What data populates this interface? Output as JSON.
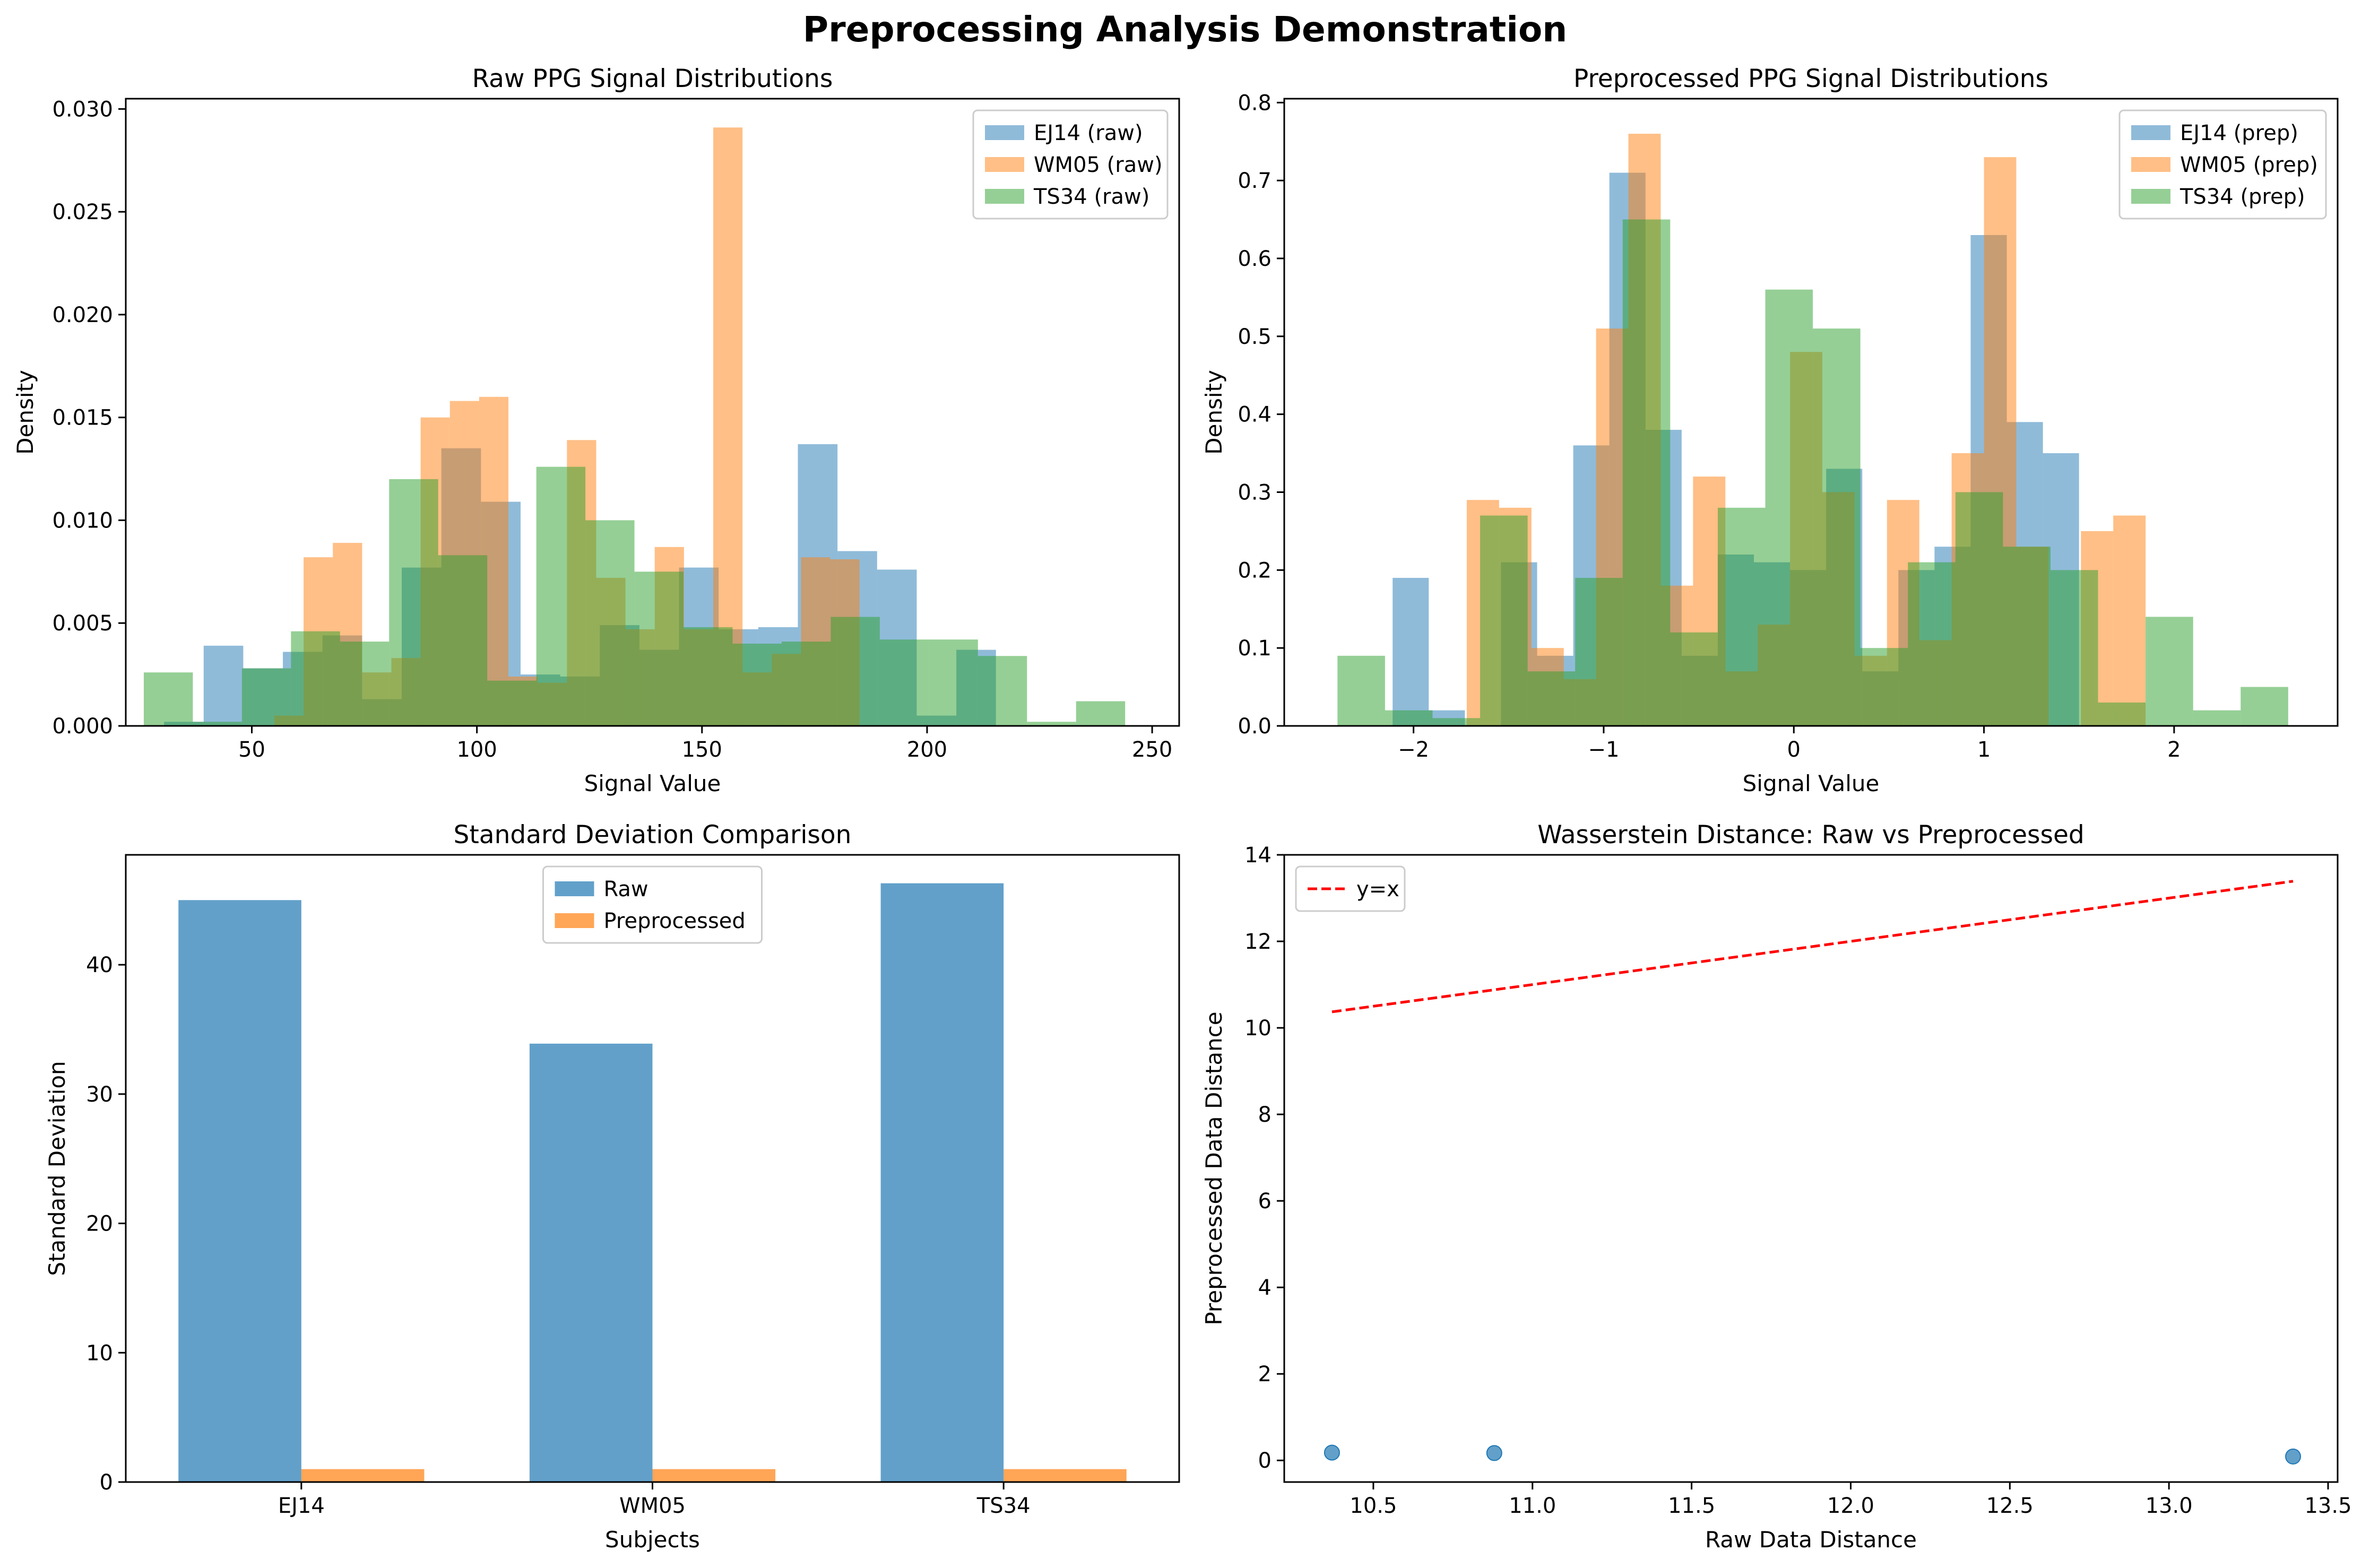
{
  "figure": {
    "title": "Preprocessing Analysis Demonstration"
  },
  "colors": {
    "blue": "#1f77b4",
    "orange": "#ff7f0e",
    "green": "#2ca02c",
    "red": "#ff0000"
  },
  "chart_data": [
    {
      "type": "histogram",
      "title": "Raw PPG Signal Distributions",
      "xlabel": "Signal Value",
      "ylabel": "Density",
      "xlim": [
        22,
        256
      ],
      "ylim": [
        0,
        0.0305
      ],
      "xticks": [
        50,
        100,
        150,
        200,
        250
      ],
      "yticks": [
        0.0,
        0.005,
        0.01,
        0.015,
        0.02,
        0.025,
        0.03
      ],
      "ytick_decimals": 3,
      "legend": "top-right",
      "series": [
        {
          "name": "EJ14 (raw)",
          "color": "blue",
          "edges": [
            30.5,
            39.3,
            48.1,
            56.9,
            65.7,
            74.5,
            83.3,
            92.1,
            100.9,
            109.7,
            118.5,
            127.3,
            136.1,
            144.9,
            153.7,
            162.5,
            171.3,
            180.1,
            188.9,
            197.7,
            206.5,
            215.3
          ],
          "density": [
            0.0002,
            0.0039,
            0.0028,
            0.0036,
            0.0044,
            0.0013,
            0.0077,
            0.0135,
            0.0109,
            0.0025,
            0.0024,
            0.0049,
            0.0037,
            0.0077,
            0.0047,
            0.0048,
            0.0137,
            0.0085,
            0.0076,
            0.0005,
            0.0037
          ]
        },
        {
          "name": "WM05 (raw)",
          "color": "orange",
          "edges": [
            55.0,
            61.5,
            68.0,
            74.5,
            81.0,
            87.5,
            94.0,
            100.5,
            107.0,
            113.5,
            120.0,
            126.5,
            133.0,
            139.5,
            146.0,
            152.5,
            159.0,
            165.5,
            172.0,
            178.5,
            185.0
          ],
          "density": [
            0.0005,
            0.0082,
            0.0089,
            0.0026,
            0.0033,
            0.015,
            0.0158,
            0.016,
            0.0024,
            0.0021,
            0.0139,
            0.0072,
            0.0047,
            0.0087,
            0.0047,
            0.0291,
            0.0026,
            0.0035,
            0.0082,
            0.0081
          ]
        },
        {
          "name": "TS34 (raw)",
          "color": "green",
          "edges": [
            26.0,
            36.9,
            47.8,
            58.7,
            69.6,
            80.5,
            91.4,
            102.3,
            113.2,
            124.1,
            135.0,
            145.9,
            156.8,
            167.7,
            178.6,
            189.5,
            200.4,
            211.3,
            222.2,
            233.1,
            244.0
          ],
          "density": [
            0.0026,
            0.0002,
            0.0028,
            0.0046,
            0.0041,
            0.012,
            0.0083,
            0.0022,
            0.0126,
            0.01,
            0.0075,
            0.0048,
            0.004,
            0.0041,
            0.0053,
            0.0042,
            0.0042,
            0.0034,
            0.0002,
            0.0012
          ]
        }
      ]
    },
    {
      "type": "histogram",
      "title": "Preprocessed PPG Signal Distributions",
      "xlabel": "Signal Value",
      "ylabel": "Density",
      "xlim": [
        -2.68,
        2.86
      ],
      "ylim": [
        0,
        0.805
      ],
      "xticks": [
        -2,
        -1,
        0,
        1,
        2
      ],
      "tick_labels_x": [
        "−2",
        "−1",
        "0",
        "1",
        "2"
      ],
      "yticks": [
        0.0,
        0.1,
        0.2,
        0.3,
        0.4,
        0.5,
        0.6,
        0.7,
        0.8
      ],
      "ytick_decimals": 1,
      "legend": "top-right",
      "series": [
        {
          "name": "EJ14 (prep)",
          "color": "blue",
          "edges": [
            -2.11,
            -1.92,
            -1.73,
            -1.54,
            -1.35,
            -1.16,
            -0.97,
            -0.78,
            -0.59,
            -0.4,
            -0.21,
            -0.02,
            0.17,
            0.36,
            0.55,
            0.74,
            0.93,
            1.12,
            1.31,
            1.5
          ],
          "density": [
            0.19,
            0.02,
            0.0,
            0.21,
            0.09,
            0.36,
            0.71,
            0.38,
            0.09,
            0.22,
            0.21,
            0.2,
            0.33,
            0.07,
            0.2,
            0.23,
            0.63,
            0.39,
            0.35
          ]
        },
        {
          "name": "WM05 (prep)",
          "color": "orange",
          "edges": [
            -1.72,
            -1.55,
            -1.38,
            -1.21,
            -1.04,
            -0.87,
            -0.7,
            -0.53,
            -0.36,
            -0.19,
            -0.02,
            0.15,
            0.32,
            0.49,
            0.66,
            0.83,
            1.0,
            1.17,
            1.34,
            1.51,
            1.68,
            1.85
          ],
          "density": [
            0.29,
            0.28,
            0.1,
            0.06,
            0.51,
            0.76,
            0.18,
            0.32,
            0.07,
            0.13,
            0.48,
            0.3,
            0.09,
            0.29,
            0.11,
            0.35,
            0.73,
            0.23,
            0.0,
            0.25,
            0.27
          ]
        },
        {
          "name": "TS34 (prep)",
          "color": "green",
          "edges": [
            -2.4,
            -2.15,
            -1.9,
            -1.65,
            -1.4,
            -1.15,
            -0.9,
            -0.65,
            -0.4,
            -0.15,
            0.1,
            0.35,
            0.6,
            0.85,
            1.1,
            1.35,
            1.6,
            1.85,
            2.1,
            2.35,
            2.6
          ],
          "density": [
            0.09,
            0.02,
            0.01,
            0.27,
            0.07,
            0.19,
            0.65,
            0.12,
            0.28,
            0.56,
            0.51,
            0.1,
            0.21,
            0.3,
            0.23,
            0.2,
            0.03,
            0.14,
            0.02,
            0.05
          ]
        }
      ]
    },
    {
      "type": "bar",
      "title": "Standard Deviation Comparison",
      "xlabel": "Subjects",
      "ylabel": "Standard Deviation",
      "categories": [
        "EJ14",
        "WM05",
        "TS34"
      ],
      "ylim": [
        0,
        48.5
      ],
      "yticks": [
        0,
        10,
        20,
        30,
        40
      ],
      "legend": "top-center",
      "series": [
        {
          "name": "Raw",
          "color": "blue",
          "values": [
            45.0,
            33.9,
            46.3
          ]
        },
        {
          "name": "Preprocessed",
          "color": "orange",
          "values": [
            1.0,
            1.0,
            1.0
          ]
        }
      ]
    },
    {
      "type": "scatter",
      "title": "Wasserstein Distance: Raw vs Preprocessed",
      "xlabel": "Raw Data Distance",
      "ylabel": "Preprocessed Data Distance",
      "xlim": [
        10.22,
        13.53
      ],
      "ylim": [
        -0.5,
        14.0
      ],
      "xticks": [
        10.5,
        11.0,
        11.5,
        12.0,
        12.5,
        13.0,
        13.5
      ],
      "xtick_decimals": 1,
      "yticks": [
        0,
        2,
        4,
        6,
        8,
        10,
        12,
        14
      ],
      "legend": "top-left",
      "points": {
        "color": "blue",
        "x": [
          10.37,
          10.88,
          13.39
        ],
        "y": [
          0.18,
          0.17,
          0.09
        ]
      },
      "reference_line": {
        "name": "y=x",
        "color": "red",
        "style": "dashed",
        "x": [
          10.37,
          13.39
        ],
        "y": [
          10.37,
          13.39
        ]
      }
    }
  ]
}
